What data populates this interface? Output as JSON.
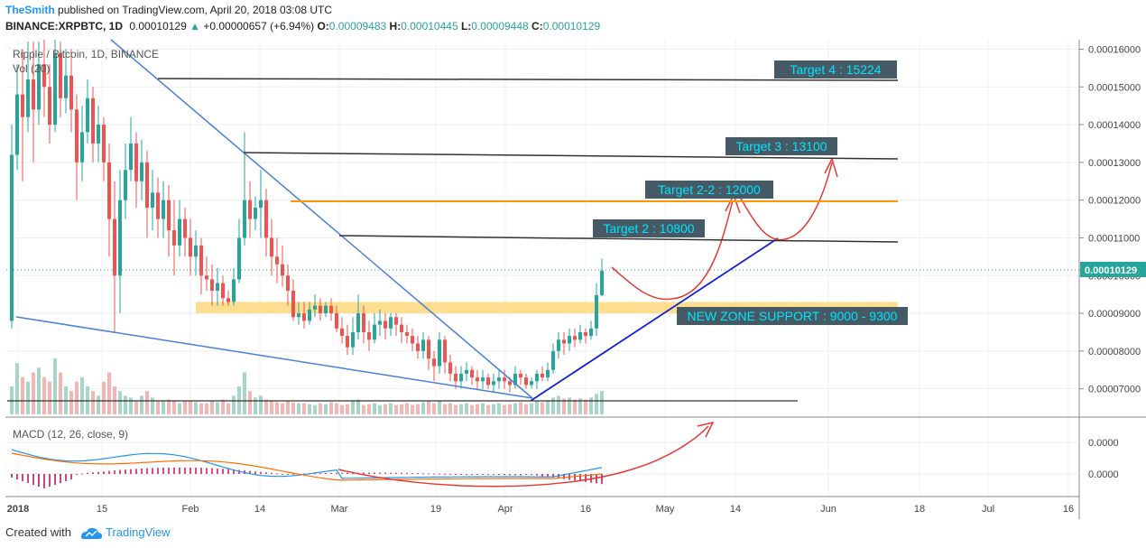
{
  "header": {
    "author": "TheSmith",
    "published": "published on TradingView.com, April 20, 2018 03:08 UTC",
    "symbol": "BINANCE:XRPBTC, 1D",
    "last": "0.00010129",
    "change": "+0.00000657 (+6.94%)",
    "o_label": "O:",
    "o_value": "0.00009483",
    "h_label": "H:",
    "h_value": "0.00010445",
    "l_label": "L:",
    "l_value": "0.00009448",
    "c_label": "C:",
    "c_value": "0.00010129"
  },
  "footer": {
    "created_with": "Created with",
    "brand": "TradingView"
  },
  "colors": {
    "up": "#26a69a",
    "down": "#ef5350",
    "accent": "#2196f3",
    "target_bg": "#455a64",
    "target_text": "#00e5ff",
    "support_band": "#ffd36b",
    "orange_line": "#ff9800"
  },
  "chart_data": {
    "type": "candlestick",
    "title": "Ripple / Bitcoin, 1D, BINANCE",
    "volume_label": "Vol (20)",
    "macd_label": "MACD (12, 26, close, 9)",
    "ylim": [
      6.25e-05,
      0.0001625
    ],
    "y_ticks": [
      "0.00016000",
      "0.00015000",
      "0.00014000",
      "0.00013000",
      "0.00012000",
      "0.00011000",
      "0.00010000",
      "0.00009000",
      "0.00008000",
      "0.00007000"
    ],
    "macd_ticks": [
      "0.0000",
      "0.0000"
    ],
    "last_price": "0.00010129",
    "x_labels": [
      "2018",
      "15",
      "Feb",
      "14",
      "Mar",
      "19",
      "Apr",
      "16",
      "May",
      "14",
      "Jun",
      "18",
      "Jul",
      "16"
    ],
    "candles": [
      [
        8.8e-05,
        0.000132,
        8.6e-05,
        0.00014
      ],
      [
        0.000132,
        0.000148,
        0.000128,
        0.000156
      ],
      [
        0.000148,
        0.000142,
        0.000125,
        0.00016
      ],
      [
        0.000142,
        0.000152,
        0.000138,
        0.000162
      ],
      [
        0.000152,
        0.000144,
        0.00013,
        0.000162
      ],
      [
        0.000144,
        0.000156,
        0.00014,
        0.000162
      ],
      [
        0.000156,
        0.00015,
        0.000142,
        0.0001625
      ],
      [
        0.00015,
        0.00014,
        0.000135,
        0.000156
      ],
      [
        0.00014,
        0.000159,
        0.000138,
        0.0001625
      ],
      [
        0.000159,
        0.000147,
        0.000142,
        0.000162
      ],
      [
        0.000147,
        0.000153,
        0.000143,
        0.00016
      ],
      [
        0.000153,
        0.000144,
        0.000138,
        0.00016
      ],
      [
        0.000144,
        0.00013,
        0.00012,
        0.000148
      ],
      [
        0.00013,
        0.000138,
        0.000125,
        0.000145
      ],
      [
        0.000138,
        0.000147,
        0.000135,
        0.000152
      ],
      [
        0.000147,
        0.000135,
        0.00013,
        0.00015
      ],
      [
        0.000135,
        0.00014,
        0.00013,
        0.000145
      ],
      [
        0.00014,
        0.00013,
        0.000125,
        0.000142
      ],
      [
        0.00013,
        0.000115,
        0.000105,
        0.000135
      ],
      [
        0.000115,
        0.0001,
        8.5e-05,
        0.000125
      ],
      [
        0.0001,
        0.00012,
        9e-05,
        0.000128
      ],
      [
        0.00012,
        0.000128,
        0.000115,
        0.000135
      ],
      [
        0.000128,
        0.000135,
        0.000125,
        0.000142
      ],
      [
        0.000135,
        0.000125,
        0.000118,
        0.000138
      ],
      [
        0.000125,
        0.00013,
        0.00012,
        0.000136
      ],
      [
        0.00013,
        0.000118,
        0.00011,
        0.000133
      ],
      [
        0.000118,
        0.000122,
        0.000112,
        0.000128
      ],
      [
        0.000122,
        0.000115,
        0.00011,
        0.000126
      ],
      [
        0.000115,
        0.00012,
        0.00011,
        0.000125
      ],
      [
        0.00012,
        0.000112,
        0.000105,
        0.000124
      ],
      [
        0.000112,
        0.000108,
        0.0001,
        0.00012
      ],
      [
        0.000108,
        0.000115,
        0.000105,
        0.00012
      ],
      [
        0.000115,
        0.00011,
        0.000105,
        0.000118
      ],
      [
        0.00011,
        0.000105,
        0.0001,
        0.000115
      ],
      [
        0.000105,
        0.000108,
        0.0001,
        0.000112
      ],
      [
        0.000108,
        0.0001,
        9.5e-05,
        0.00011
      ],
      [
        0.0001,
        9.9e-05,
        9.6e-05,
        0.000105
      ],
      [
        9.9e-05,
        9.6e-05,
        9.2e-05,
        0.000103
      ],
      [
        9.6e-05,
        9.8e-05,
        9.2e-05,
        0.000102
      ],
      [
        9.8e-05,
        9.4e-05,
        9.2e-05,
        0.0001
      ],
      [
        9.4e-05,
        9.3e-05,
        9.2e-05,
        9.6e-05
      ],
      [
        9.3e-05,
        9.9e-05,
        9.2e-05,
        0.000102
      ],
      [
        9.9e-05,
        0.00011,
        9.8e-05,
        0.000115
      ],
      [
        0.00011,
        0.00012,
        0.000108,
        0.000138
      ],
      [
        0.00012,
        0.000115,
        0.00011,
        0.000125
      ],
      [
        0.000115,
        0.000118,
        0.000112,
        0.000121
      ],
      [
        0.000118,
        0.00012,
        0.00011,
        0.000128
      ],
      [
        0.00012,
        0.00011,
        0.000105,
        0.000123
      ],
      [
        0.00011,
        0.000105,
        0.0001,
        0.000115
      ],
      [
        0.000105,
        0.000103,
        9.8e-05,
        0.00011
      ],
      [
        0.000103,
        0.0001,
        9.7e-05,
        0.000108
      ],
      [
        0.0001,
        9.6e-05,
        9.2e-05,
        0.000103
      ],
      [
        9.6e-05,
        8.9e-05,
        8.8e-05,
        9.9e-05
      ],
      [
        8.9e-05,
        9e-05,
        8.7e-05,
        9.3e-05
      ],
      [
        9e-05,
        8.8e-05,
        8.6e-05,
        9.3e-05
      ],
      [
        8.8e-05,
        9.1e-05,
        8.7e-05,
        9.3e-05
      ],
      [
        9.1e-05,
        9.2e-05,
        8.9e-05,
        9.5e-05
      ],
      [
        9.2e-05,
        9e-05,
        8.8e-05,
        9.4e-05
      ],
      [
        9e-05,
        9.2e-05,
        8.9e-05,
        9.3e-05
      ],
      [
        9.2e-05,
        9e-05,
        8.8e-05,
        9.4e-05
      ],
      [
        9e-05,
        8.6e-05,
        8.5e-05,
        9.2e-05
      ],
      [
        8.6e-05,
        8.4e-05,
        8.2e-05,
        8.9e-05
      ],
      [
        8.4e-05,
        8.1e-05,
        7.9e-05,
        8.7e-05
      ],
      [
        8.1e-05,
        8.5e-05,
        7.9e-05,
        8.9e-05
      ],
      [
        8.5e-05,
        9e-05,
        8.3e-05,
        9.5e-05
      ],
      [
        9e-05,
        8.5e-05,
        8.2e-05,
        9.2e-05
      ],
      [
        8.5e-05,
        8.3e-05,
        8e-05,
        8.8e-05
      ],
      [
        8.3e-05,
        8.7e-05,
        8.2e-05,
        9e-05
      ],
      [
        8.7e-05,
        8.8e-05,
        8.4e-05,
        9.1e-05
      ],
      [
        8.8e-05,
        8.6e-05,
        8.3e-05,
        9e-05
      ],
      [
        8.6e-05,
        8.9e-05,
        8.4e-05,
        9e-05
      ],
      [
        8.9e-05,
        8.7e-05,
        8.4e-05,
        9e-05
      ],
      [
        8.7e-05,
        8.5e-05,
        8.2e-05,
        8.9e-05
      ],
      [
        8.5e-05,
        8.4e-05,
        8.2e-05,
        8.7e-05
      ],
      [
        8.4e-05,
        8.2e-05,
        8e-05,
        8.6e-05
      ],
      [
        8.2e-05,
        8e-05,
        7.8e-05,
        8.4e-05
      ],
      [
        8e-05,
        8.3e-05,
        7.8e-05,
        8.5e-05
      ],
      [
        8.3e-05,
        7.8e-05,
        7.5e-05,
        8.4e-05
      ],
      [
        7.8e-05,
        7.6e-05,
        7.2e-05,
        8e-05
      ],
      [
        7.6e-05,
        8.3e-05,
        7.4e-05,
        8.5e-05
      ],
      [
        8.3e-05,
        7.7e-05,
        7.4e-05,
        8.4e-05
      ],
      [
        7.7e-05,
        7.4e-05,
        7.2e-05,
        7.9e-05
      ],
      [
        7.4e-05,
        7.2e-05,
        7e-05,
        7.6e-05
      ],
      [
        7.2e-05,
        7.4e-05,
        7e-05,
        7.6e-05
      ],
      [
        7.4e-05,
        7.5e-05,
        7.2e-05,
        7.7e-05
      ],
      [
        7.5e-05,
        7.3e-05,
        7.1e-05,
        7.6e-05
      ],
      [
        7.3e-05,
        7.2e-05,
        7e-05,
        7.5e-05
      ],
      [
        7.2e-05,
        7.3e-05,
        7e-05,
        7.5e-05
      ],
      [
        7.3e-05,
        7.1e-05,
        7e-05,
        7.4e-05
      ],
      [
        7.1e-05,
        7.2e-05,
        6.9e-05,
        7.4e-05
      ],
      [
        7.2e-05,
        7.3e-05,
        7e-05,
        7.5e-05
      ],
      [
        7.3e-05,
        7.2e-05,
        7e-05,
        7.5e-05
      ],
      [
        7.2e-05,
        7.1e-05,
        6.9e-05,
        7.3e-05
      ],
      [
        7.1e-05,
        7.4e-05,
        7e-05,
        7.6e-05
      ],
      [
        7.4e-05,
        7.3e-05,
        7.1e-05,
        7.5e-05
      ],
      [
        7.3e-05,
        7.1e-05,
        7e-05,
        7.4e-05
      ],
      [
        7.1e-05,
        7.2e-05,
        7e-05,
        7.3e-05
      ],
      [
        7.2e-05,
        7.4e-05,
        7e-05,
        7.5e-05
      ],
      [
        7.4e-05,
        7.3e-05,
        7.2e-05,
        7.6e-05
      ],
      [
        7.3e-05,
        7.5e-05,
        7.2e-05,
        7.7e-05
      ],
      [
        7.5e-05,
        8e-05,
        7.4e-05,
        8.2e-05
      ],
      [
        8e-05,
        8.3e-05,
        7.8e-05,
        8.5e-05
      ],
      [
        8.3e-05,
        8.2e-05,
        7.9e-05,
        8.5e-05
      ],
      [
        8.2e-05,
        8.4e-05,
        8e-05,
        8.6e-05
      ],
      [
        8.4e-05,
        8.3e-05,
        8.1e-05,
        8.6e-05
      ],
      [
        8.3e-05,
        8.5e-05,
        8.2e-05,
        8.7e-05
      ],
      [
        8.5e-05,
        8.4e-05,
        8.2e-05,
        8.6e-05
      ],
      [
        8.4e-05,
        8.6e-05,
        8.3e-05,
        8.8e-05
      ],
      [
        8.6e-05,
        9.48e-05,
        8.4e-05,
        9.8e-05
      ],
      [
        9.48e-05,
        0.0001013,
        9.45e-05,
        0.0001045
      ]
    ],
    "volumes": [
      30,
      55,
      40,
      35,
      45,
      50,
      40,
      35,
      60,
      45,
      30,
      25,
      35,
      40,
      30,
      25,
      20,
      35,
      45,
      30,
      25,
      20,
      18,
      15,
      20,
      25,
      18,
      15,
      14,
      16,
      14,
      12,
      14,
      15,
      13,
      12,
      12,
      14,
      13,
      16,
      12,
      20,
      30,
      45,
      25,
      18,
      20,
      16,
      14,
      13,
      12,
      14,
      13,
      12,
      12,
      11,
      10,
      12,
      11,
      13,
      12,
      10,
      11,
      14,
      16,
      10,
      11,
      12,
      10,
      11,
      12,
      10,
      11,
      12,
      10,
      11,
      13,
      15,
      12,
      14,
      11,
      12,
      10,
      11,
      12,
      10,
      11,
      12,
      10,
      11,
      12,
      10,
      11,
      12,
      13,
      11,
      12,
      14,
      13,
      15,
      18,
      20,
      17,
      18,
      16,
      17,
      16,
      18,
      22,
      25
    ],
    "annotations": {
      "targets": [
        {
          "label": "Target 4 : 15224",
          "price": 0.0001522
        },
        {
          "label": "Target 3 : 13100",
          "price": 0.000131
        },
        {
          "label": "Target 2-2 : 12000",
          "price": 0.00012
        },
        {
          "label": "Target 2 : 10800",
          "price": 0.000108
        }
      ],
      "support": {
        "label": "NEW ZONE SUPPORT : 9000 - 9300",
        "low": 9e-05,
        "high": 9.3e-05
      }
    }
  }
}
